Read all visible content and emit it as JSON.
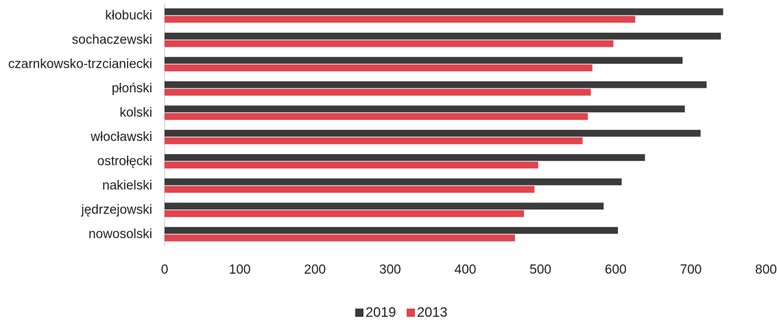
{
  "chart_data": {
    "type": "bar",
    "orientation": "horizontal",
    "categories": [
      "kłobucki",
      "sochaczewski",
      "czarnkowsko-trzcianiecki",
      "płoński",
      "kolski",
      "włocławski",
      "ostrołęcki",
      "nakielski",
      "jędrzejowski",
      "nowosolski"
    ],
    "series": [
      {
        "name": "2019",
        "color": "#3a3a3a",
        "values": [
          743,
          740,
          689,
          721,
          692,
          713,
          639,
          608,
          584,
          603
        ]
      },
      {
        "name": "2013",
        "color": "#e0444f",
        "values": [
          626,
          597,
          569,
          567,
          563,
          556,
          497,
          492,
          478,
          466
        ]
      }
    ],
    "xlim": [
      0,
      800
    ],
    "x_ticks": [
      "0",
      "100",
      "200",
      "300",
      "400",
      "500",
      "600",
      "700",
      "800"
    ],
    "grid": false,
    "legend_position": "bottom"
  }
}
